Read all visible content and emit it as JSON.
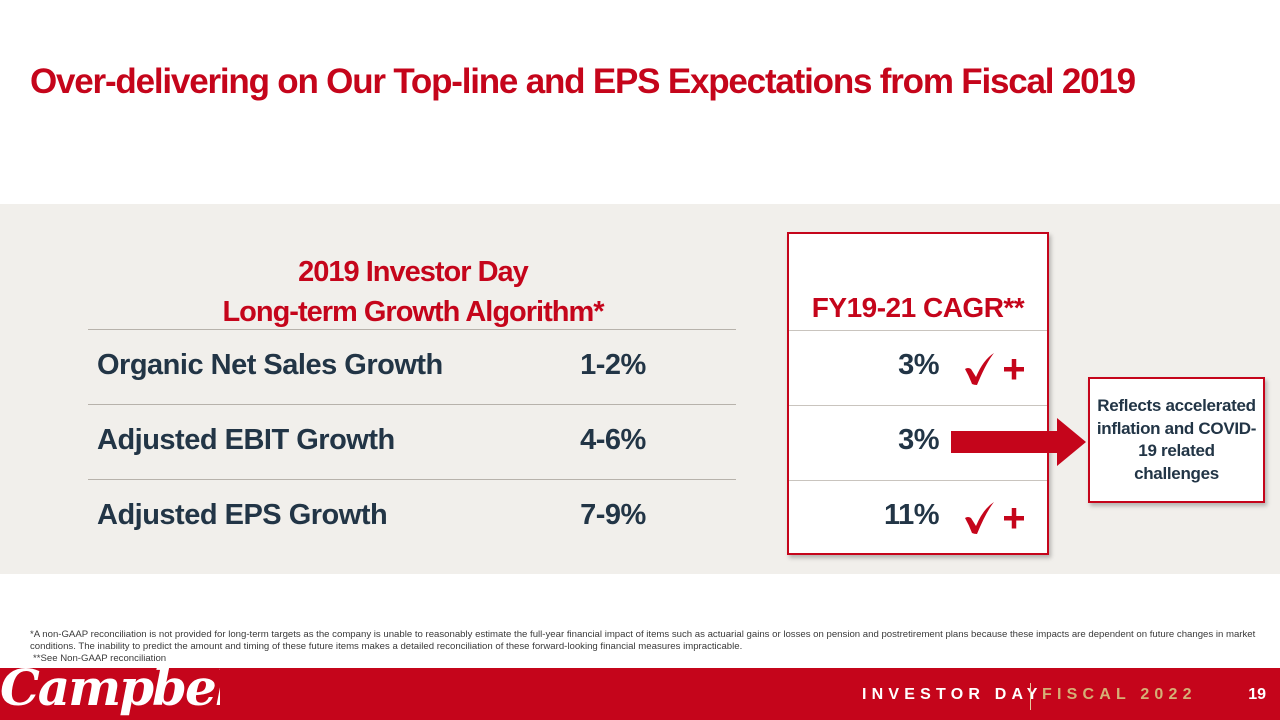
{
  "slide": {
    "title": "Over-delivering on Our Top-line and EPS Expectations from Fiscal 2019",
    "algorithm_heading": {
      "line1": "2019 Investor Day",
      "line2": "Long-term Growth Algorithm*"
    },
    "cagr_heading": "FY19-21 CAGR**",
    "rows": [
      {
        "label": "Organic Net Sales Growth",
        "range": "1-2%",
        "cagr": "3%",
        "mark": "check-plus"
      },
      {
        "label": "Adjusted EBIT Growth",
        "range": "4-6%",
        "cagr": "3%",
        "mark": "arrow"
      },
      {
        "label": "Adjusted EPS Growth",
        "range": "7-9%",
        "cagr": "11%",
        "mark": "check-plus"
      }
    ],
    "callout": "Reflects accelerated inflation and COVID-19 related challenges",
    "footnotes": [
      "*A non-GAAP reconciliation is not provided for long-term targets as the company is unable to reasonably estimate the full-year financial impact of items such as actuarial gains or losses on pension and postretirement plans because these impacts are dependent on future changes in market conditions. The inability to predict the amount and timing of these future items makes a detailed reconciliation of these forward-looking financial measures impracticable.",
      "**See Non-GAAP reconciliation"
    ]
  },
  "footer": {
    "logo_text": "Campbell's",
    "event": "INVESTOR DAY",
    "fiscal": "FISCAL 2022",
    "page_number": "19"
  },
  "colors": {
    "brand_red": "#c5051b",
    "text_dark": "#223546",
    "panel_bg": "#f1efeb",
    "gold": "#d5b076"
  }
}
